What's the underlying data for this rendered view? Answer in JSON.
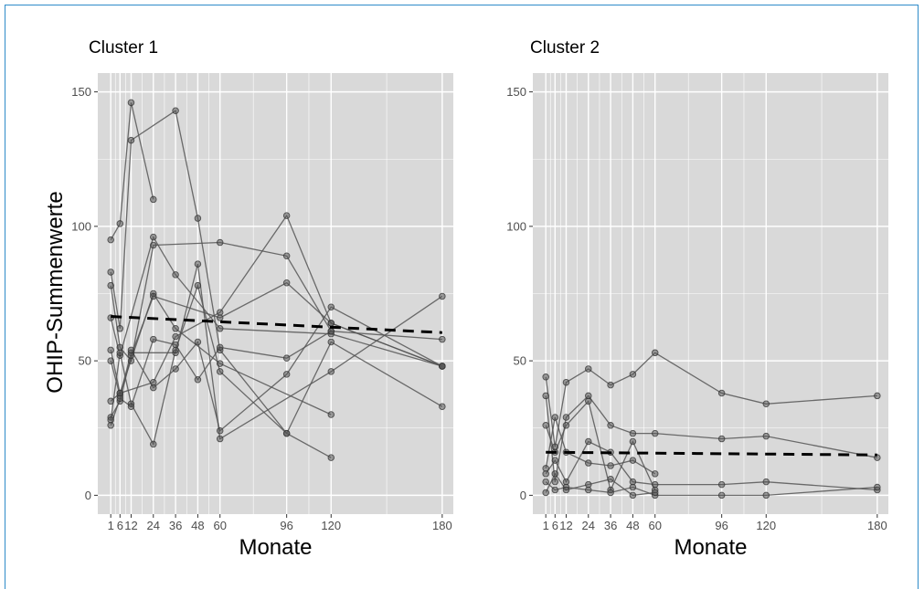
{
  "figure": {
    "ylabel": "OHIP-Summenwerte",
    "colors": {
      "panel_bg": "#d9d9d9",
      "grid": "#ffffff",
      "series_line": "#555555",
      "point_fill": "#555555",
      "mean_line": "#000000",
      "frame_border": "#2e8bc9"
    }
  },
  "chart_data": [
    {
      "type": "line",
      "title": "Cluster 1",
      "xlabel": "Monate",
      "ylabel": "OHIP-Summenwerte",
      "xlim": [
        -6,
        186
      ],
      "ylim": [
        -7,
        157
      ],
      "x_ticks": [
        1,
        6,
        12,
        24,
        36,
        48,
        60,
        96,
        120,
        180
      ],
      "x_tick_labels": [
        "1",
        "6",
        "12",
        "24",
        "36",
        "48",
        "60",
        "96",
        "120",
        "180"
      ],
      "y_ticks": [
        0,
        50,
        100,
        150
      ],
      "y_tick_labels": [
        "0",
        "50",
        "100",
        "150"
      ],
      "grid": true,
      "legend": "none",
      "series": [
        {
          "x": [
            1,
            6,
            12,
            24
          ],
          "y": [
            95,
            101,
            146,
            110
          ]
        },
        {
          "x": [
            1,
            6,
            12,
            36,
            48,
            60,
            96,
            120
          ],
          "y": [
            83,
            62,
            132,
            143,
            103,
            54,
            23,
            14
          ]
        },
        {
          "x": [
            1,
            6,
            12,
            24,
            60,
            96,
            120,
            180
          ],
          "y": [
            78,
            55,
            50,
            93,
            94,
            89,
            61,
            58
          ]
        },
        {
          "x": [
            1,
            6,
            24,
            36,
            60,
            120,
            180
          ],
          "y": [
            66,
            52,
            96,
            82,
            62,
            60,
            48
          ]
        },
        {
          "x": [
            1,
            6,
            24,
            36,
            60,
            120
          ],
          "y": [
            54,
            38,
            75,
            62,
            49,
            30
          ]
        },
        {
          "x": [
            1,
            6,
            12,
            36,
            48,
            60,
            120,
            180
          ],
          "y": [
            50,
            37,
            53,
            53,
            86,
            21,
            46,
            74
          ]
        },
        {
          "x": [
            1,
            6,
            24,
            36,
            60,
            96,
            120,
            180
          ],
          "y": [
            35,
            38,
            42,
            59,
            68,
            104,
            64,
            48
          ]
        },
        {
          "x": [
            1,
            6,
            12,
            24,
            60,
            96,
            120,
            180
          ],
          "y": [
            29,
            35,
            52,
            74,
            66,
            79,
            64,
            48
          ]
        },
        {
          "x": [
            1,
            6,
            12,
            24,
            36,
            48,
            60,
            96,
            120,
            180
          ],
          "y": [
            28,
            53,
            34,
            19,
            54,
            78,
            46,
            23,
            57,
            33
          ]
        },
        {
          "x": [
            1,
            6,
            12,
            24,
            36,
            48,
            60,
            96,
            120
          ],
          "y": [
            26,
            36,
            33,
            58,
            56,
            43,
            55,
            51,
            61
          ]
        },
        {
          "x": [
            12,
            24,
            36,
            48,
            60,
            96,
            120,
            180
          ],
          "y": [
            54,
            40,
            47,
            57,
            24,
            45,
            70,
            48
          ]
        }
      ],
      "mean_line": {
        "x": [
          1,
          180
        ],
        "y": [
          66.5,
          60.5
        ]
      }
    },
    {
      "type": "line",
      "title": "Cluster 2",
      "xlabel": "Monate",
      "ylabel": "",
      "xlim": [
        -6,
        186
      ],
      "ylim": [
        -7,
        157
      ],
      "x_ticks": [
        1,
        6,
        12,
        24,
        36,
        48,
        60,
        96,
        120,
        180
      ],
      "x_tick_labels": [
        "1",
        "6",
        "12",
        "24",
        "36",
        "48",
        "60",
        "96",
        "120",
        "180"
      ],
      "y_ticks": [
        0,
        50,
        100,
        150
      ],
      "y_tick_labels": [
        "0",
        "50",
        "100",
        "150"
      ],
      "grid": true,
      "legend": "none",
      "series": [
        {
          "x": [
            1,
            6,
            12,
            24,
            36,
            48,
            60,
            96,
            120,
            180
          ],
          "y": [
            44,
            18,
            42,
            47,
            41,
            45,
            53,
            38,
            34,
            37
          ]
        },
        {
          "x": [
            1,
            6,
            12,
            24,
            36,
            48,
            60,
            96,
            120,
            180
          ],
          "y": [
            37,
            5,
            29,
            37,
            26,
            23,
            23,
            21,
            22,
            14
          ]
        },
        {
          "x": [
            1,
            6,
            12,
            24,
            36,
            48,
            60
          ],
          "y": [
            26,
            16,
            26,
            35,
            2,
            20,
            2
          ]
        },
        {
          "x": [
            1,
            6,
            12,
            24,
            36,
            48,
            60
          ],
          "y": [
            10,
            29,
            16,
            12,
            11,
            13,
            8
          ]
        },
        {
          "x": [
            1,
            6,
            12,
            24,
            36,
            48,
            60,
            96,
            120,
            180
          ],
          "y": [
            8,
            13,
            5,
            20,
            16,
            5,
            4,
            4,
            5,
            2
          ]
        },
        {
          "x": [
            1,
            6,
            12,
            24,
            36,
            48,
            60,
            96,
            120,
            180
          ],
          "y": [
            5,
            2,
            3,
            2,
            1,
            3,
            0,
            0,
            0,
            3
          ]
        },
        {
          "x": [
            1,
            6,
            12,
            24,
            36,
            48,
            60
          ],
          "y": [
            1,
            8,
            2,
            4,
            6,
            0,
            1
          ]
        }
      ],
      "mean_line": {
        "x": [
          1,
          180
        ],
        "y": [
          16,
          15
        ]
      }
    }
  ]
}
